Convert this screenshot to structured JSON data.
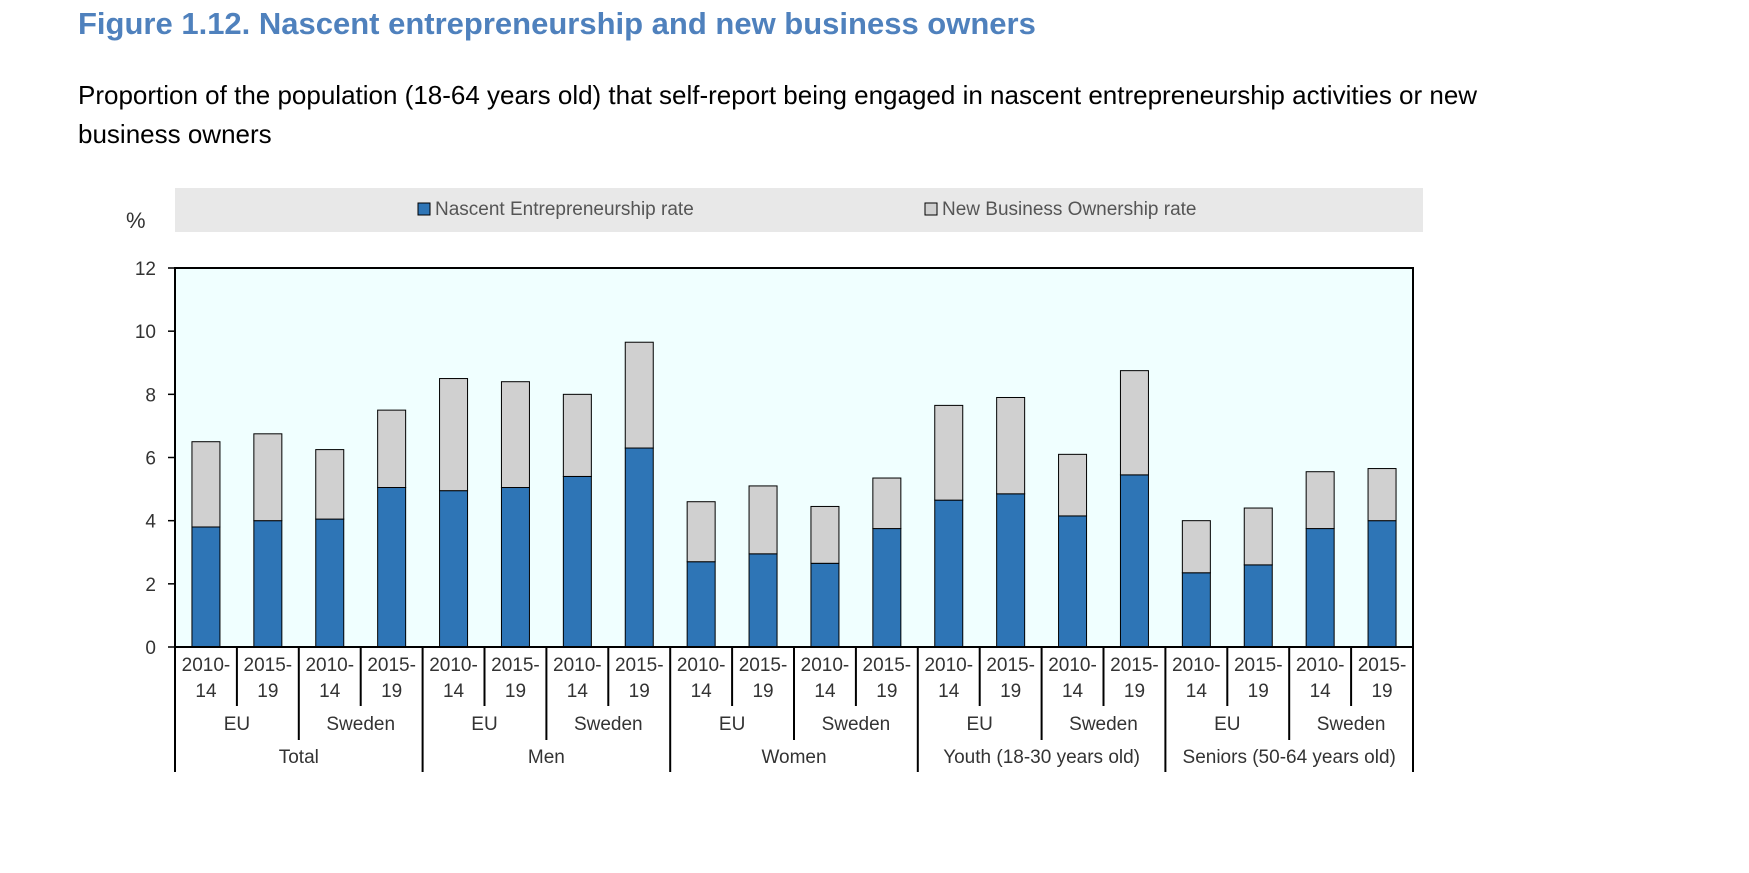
{
  "figure": {
    "title": "Figure 1.12. Nascent entrepreneurship and new business owners",
    "subtitle": "Proportion of the population (18-64 years old) that self-report being engaged in nascent entrepreneurship activities or new business owners"
  },
  "colors": {
    "title": "#4f81bd",
    "nascent": "#2e75b6",
    "new_business": "#d0d0d0",
    "plot_background": "#f0ffff",
    "legend_background": "#e8e8e8"
  },
  "chart_data": {
    "type": "bar",
    "stacked": true,
    "y_unit_label": "%",
    "ylim": [
      0,
      12
    ],
    "yticks": [
      0,
      2,
      4,
      6,
      8,
      10,
      12
    ],
    "legend_position": "top",
    "grid": false,
    "categories": [
      "2010-14",
      "2015-19",
      "2010-14",
      "2015-19",
      "2010-14",
      "2015-19",
      "2010-14",
      "2015-19",
      "2010-14",
      "2015-19",
      "2010-14",
      "2015-19",
      "2010-14",
      "2015-19",
      "2010-14",
      "2015-19",
      "2010-14",
      "2015-19",
      "2010-14",
      "2015-19"
    ],
    "category_lines": [
      [
        "2010-",
        "14"
      ],
      [
        "2015-",
        "19"
      ],
      [
        "2010-",
        "14"
      ],
      [
        "2015-",
        "19"
      ],
      [
        "2010-",
        "14"
      ],
      [
        "2015-",
        "19"
      ],
      [
        "2010-",
        "14"
      ],
      [
        "2015-",
        "19"
      ],
      [
        "2010-",
        "14"
      ],
      [
        "2015-",
        "19"
      ],
      [
        "2010-",
        "14"
      ],
      [
        "2015-",
        "19"
      ],
      [
        "2010-",
        "14"
      ],
      [
        "2015-",
        "19"
      ],
      [
        "2010-",
        "14"
      ],
      [
        "2015-",
        "19"
      ],
      [
        "2010-",
        "14"
      ],
      [
        "2015-",
        "19"
      ],
      [
        "2010-",
        "14"
      ],
      [
        "2015-",
        "19"
      ]
    ],
    "regions": [
      "EU",
      "Sweden",
      "EU",
      "Sweden",
      "EU",
      "Sweden",
      "EU",
      "Sweden",
      "EU",
      "Sweden"
    ],
    "groups": [
      "Total",
      "Men",
      "Women",
      "Youth (18-30 years old)",
      "Seniors (50-64 years old)"
    ],
    "series": [
      {
        "name": "Nascent Entrepreneurship rate",
        "values": [
          3.8,
          4.0,
          4.05,
          5.05,
          4.95,
          5.05,
          5.4,
          6.3,
          2.7,
          2.95,
          2.65,
          3.75,
          4.65,
          4.85,
          4.15,
          5.45,
          2.35,
          2.6,
          3.75,
          4.0
        ]
      },
      {
        "name": "New Business Ownership rate",
        "values": [
          2.7,
          2.75,
          2.2,
          2.45,
          3.55,
          3.35,
          2.6,
          3.35,
          1.9,
          2.15,
          1.8,
          1.6,
          3.0,
          3.05,
          1.95,
          3.3,
          1.65,
          1.8,
          1.8,
          1.65
        ]
      }
    ]
  }
}
